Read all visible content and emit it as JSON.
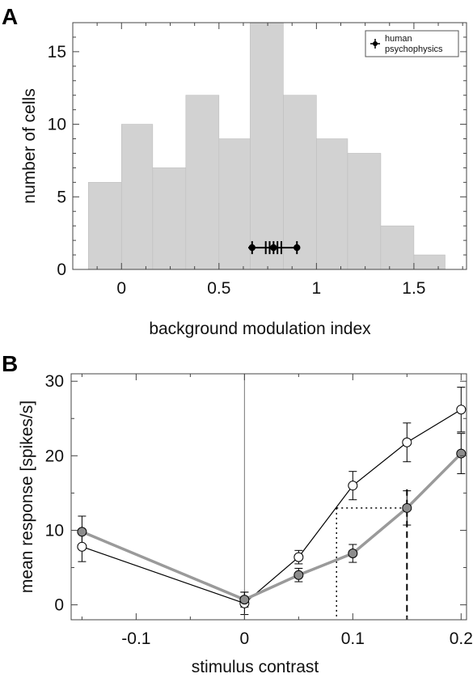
{
  "chart_data": [
    {
      "panel": "A",
      "type": "bar",
      "xlabel": "background modulation index",
      "ylabel": "number of cells",
      "xlim": [
        -0.25,
        1.77
      ],
      "ylim": [
        0,
        17
      ],
      "xticks": [
        "0",
        "0.5",
        "1",
        "1.5"
      ],
      "yticks": [
        "0",
        "5",
        "10",
        "15"
      ],
      "bin_edges": [
        -0.17,
        0.0,
        0.16,
        0.33,
        0.5,
        0.66,
        0.83,
        1.0,
        1.16,
        1.33,
        1.5,
        1.66
      ],
      "values": [
        6,
        10,
        7,
        12,
        9,
        17,
        12,
        9,
        8,
        3,
        1
      ],
      "bar_color": "#d2d2d2",
      "legend": {
        "label_line1": "human",
        "label_line2": "psychophysics",
        "position": "top-right"
      },
      "psychophysics": {
        "y": 1.5,
        "points": [
          0.67,
          0.74,
          0.76,
          0.78,
          0.8,
          0.82,
          0.9
        ],
        "mean": 0.78,
        "error": [
          0.65,
          0.91
        ]
      }
    },
    {
      "panel": "B",
      "type": "line",
      "xlabel": "stimulus contrast",
      "ylabel": "mean response [spikes/s]",
      "xlim": [
        -0.16,
        0.205
      ],
      "ylim": [
        -2,
        31
      ],
      "xticks": [
        "-0.1",
        "0",
        "0.1",
        "0.2"
      ],
      "yticks": [
        "0",
        "10",
        "20",
        "30"
      ],
      "series": [
        {
          "marker": "open",
          "color": "#000000",
          "x": [
            -0.15,
            0.0,
            0.05,
            0.1,
            0.15,
            0.2
          ],
          "y": [
            7.8,
            0.2,
            6.4,
            16.0,
            21.8,
            26.2
          ],
          "err": [
            2.0,
            1.5,
            0.9,
            1.9,
            2.6,
            3.0
          ]
        },
        {
          "marker": "filled",
          "color": "#9a9a9a",
          "x": [
            -0.15,
            0.0,
            0.05,
            0.1,
            0.15,
            0.2
          ],
          "y": [
            9.8,
            0.7,
            4.0,
            6.9,
            13.0,
            20.3
          ],
          "err": [
            2.1,
            1.0,
            0.9,
            1.2,
            2.3,
            2.7
          ]
        }
      ],
      "reference": {
        "level": 13.0,
        "x_dotted": 0.085,
        "x_dashed": 0.15
      }
    }
  ]
}
